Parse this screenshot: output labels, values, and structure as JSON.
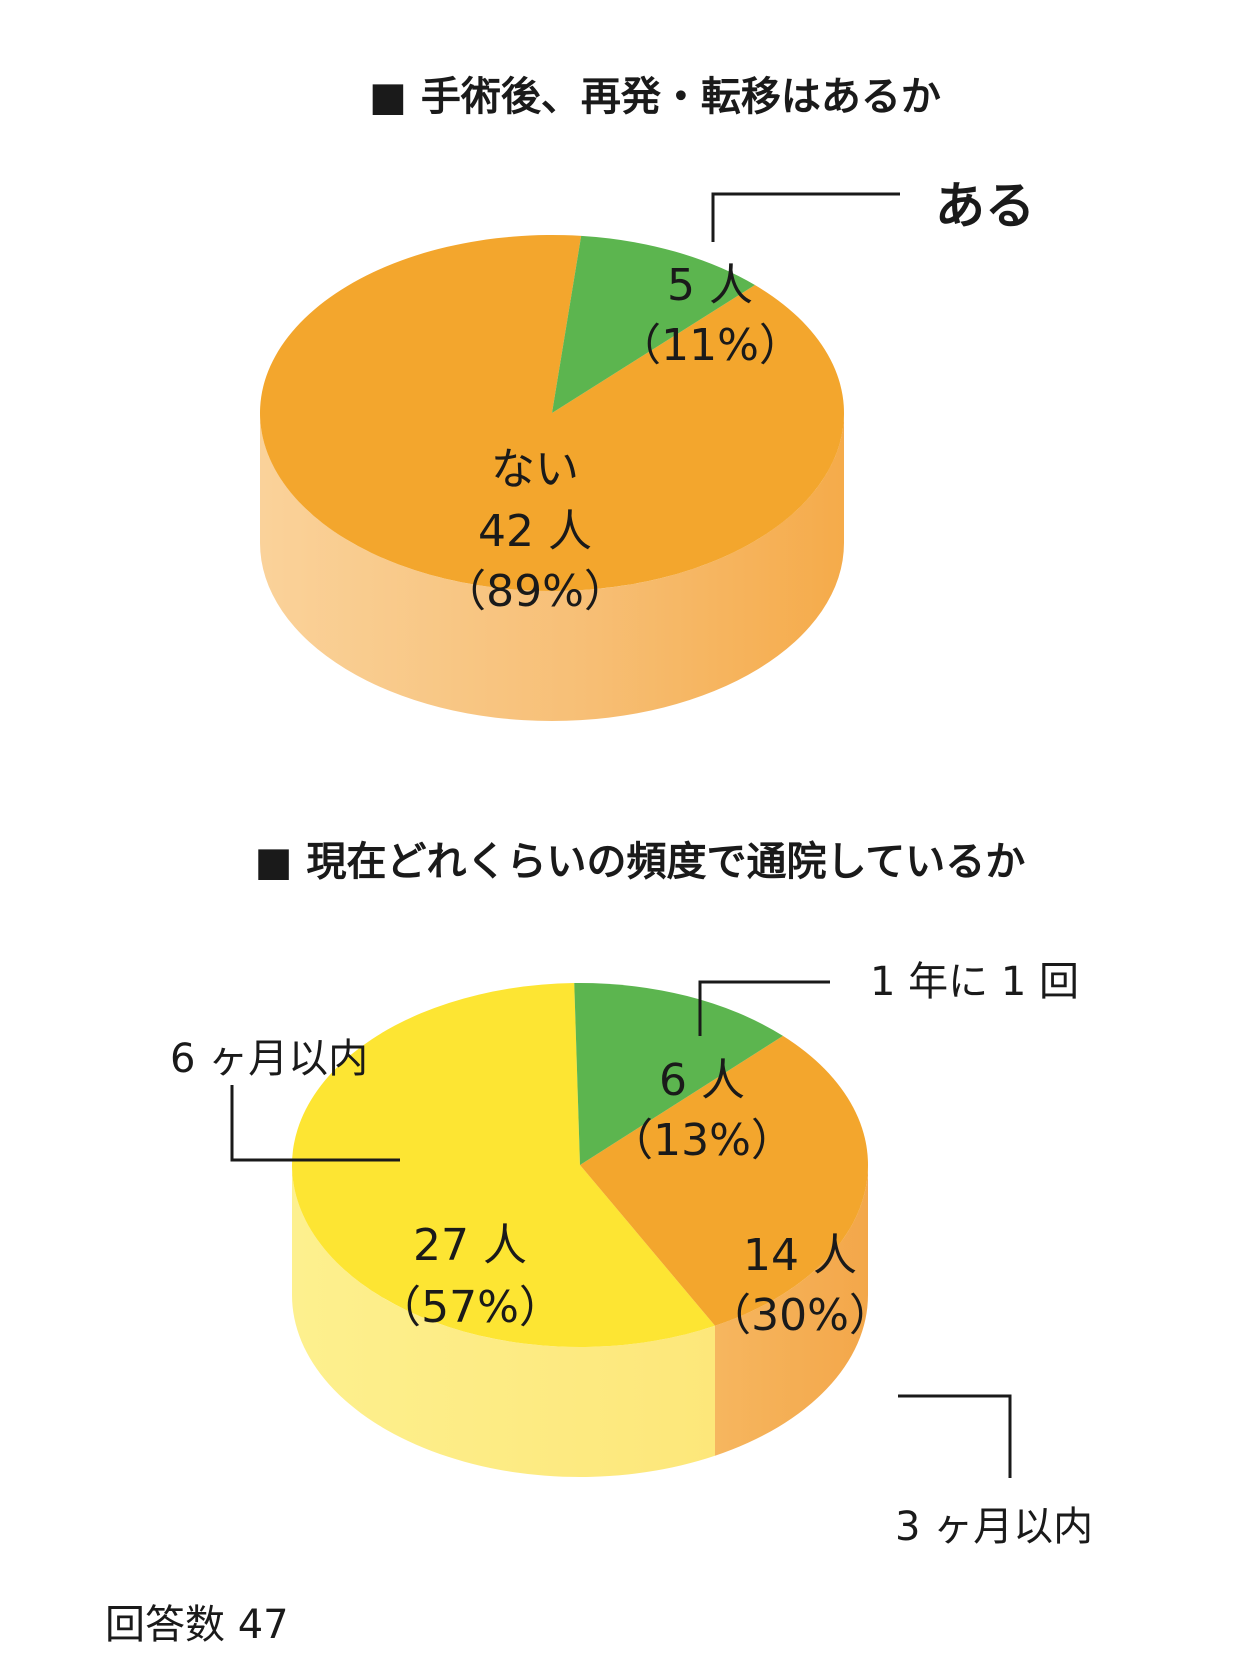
{
  "chart_data": [
    {
      "type": "pie",
      "title": "■ 手術後、再発・転移はあるか",
      "categories": [
        "ある",
        "ない"
      ],
      "values": [
        5,
        42
      ],
      "unit": "人",
      "percents": [
        "11%",
        "89%"
      ],
      "colors": [
        "#5cb54f",
        "#f3a62d"
      ],
      "labels": [
        {
          "name": "ある",
          "count": "5 人",
          "pct": "（11%）"
        },
        {
          "name": "ない",
          "count": "42 人",
          "pct": "（89%）"
        }
      ]
    },
    {
      "type": "pie",
      "title": "■ 現在どれくらいの頻度で通院しているか",
      "categories": [
        "1 年に 1 回",
        "3 ヶ月以内",
        "6 ヶ月以内"
      ],
      "values": [
        6,
        14,
        27
      ],
      "unit": "人",
      "percents": [
        "13%",
        "30%",
        "57%"
      ],
      "colors": [
        "#5cb54f",
        "#f3a62d",
        "#fde533"
      ],
      "labels": [
        {
          "name": "1 年に 1 回",
          "count": "6 人",
          "pct": "（13%）"
        },
        {
          "name": "3 ヶ月以内",
          "count": "14 人",
          "pct": "（30%）"
        },
        {
          "name": "6 ヶ月以内",
          "count": "27 人",
          "pct": "（57%）"
        }
      ]
    }
  ],
  "footer": {
    "respondents": "回答数 47"
  }
}
